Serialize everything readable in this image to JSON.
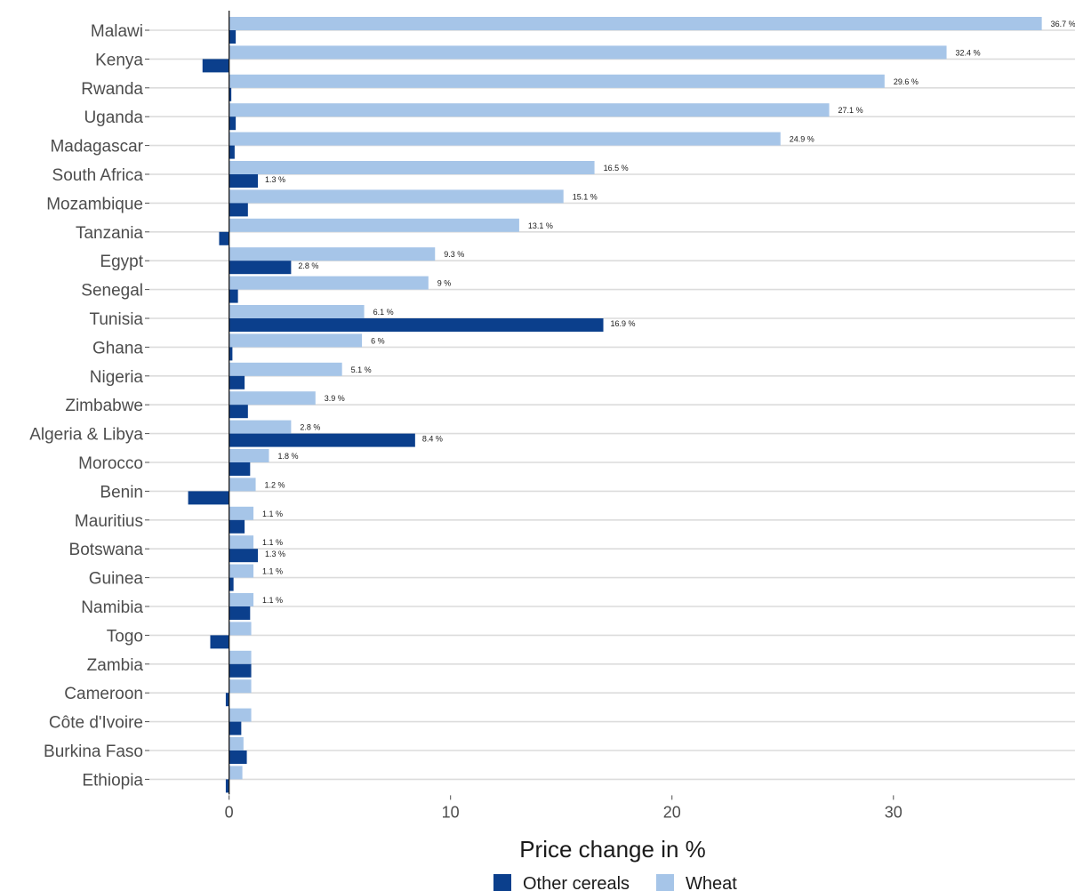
{
  "chart_data": {
    "type": "bar",
    "orientation": "horizontal",
    "xlabel": "Price change in %",
    "ylabel": "",
    "xlim": [
      -3.6,
      38.2
    ],
    "xticks": [
      0,
      10,
      20,
      30
    ],
    "grid": "horizontal only",
    "legend_position": "bottom",
    "categories": [
      "Malawi",
      "Kenya",
      "Rwanda",
      "Uganda",
      "Madagascar",
      "South Africa",
      "Mozambique",
      "Tanzania",
      "Egypt",
      "Senegal",
      "Tunisia",
      "Ghana",
      "Nigeria",
      "Zimbabwe",
      "Algeria & Libya",
      "Morocco",
      "Benin",
      "Mauritius",
      "Botswana",
      "Guinea",
      "Namibia",
      "Togo",
      "Zambia",
      "Cameroon",
      "Côte d'Ivoire",
      "Burkina Faso",
      "Ethiopia"
    ],
    "series": [
      {
        "name": "Wheat",
        "color": "#a6c5e8",
        "values": [
          36.7,
          32.4,
          29.6,
          27.1,
          24.9,
          16.5,
          15.1,
          13.1,
          9.3,
          9.0,
          6.1,
          6.0,
          5.1,
          3.9,
          2.8,
          1.8,
          1.2,
          1.1,
          1.1,
          1.1,
          1.1,
          1.0,
          1.0,
          1.0,
          1.0,
          0.65,
          0.6
        ],
        "labels": [
          "36.7 %",
          "32.4 %",
          "29.6 %",
          "27.1 %",
          "24.9 %",
          "16.5 %",
          "15.1 %",
          "13.1 %",
          "9.3 %",
          "9 %",
          "6.1 %",
          "6 %",
          "5.1 %",
          "3.9 %",
          "2.8 %",
          "1.8 %",
          "1.2 %",
          "1.1 %",
          "1.1 %",
          "1.1 %",
          "1.1 %",
          "",
          "",
          "",
          "",
          "",
          ""
        ]
      },
      {
        "name": "Other cereals",
        "color": "#0b3f8c",
        "values": [
          0.3,
          -1.2,
          0.1,
          0.3,
          0.25,
          1.3,
          0.85,
          -0.45,
          2.8,
          0.4,
          16.9,
          0.15,
          0.7,
          0.85,
          8.4,
          0.95,
          -1.85,
          0.7,
          1.3,
          0.2,
          0.95,
          -0.85,
          1.0,
          -0.15,
          0.55,
          0.8,
          -0.15
        ],
        "labels": [
          "",
          "",
          "",
          "",
          "",
          "1.3 %",
          "",
          "",
          "2.8 %",
          "",
          "16.9 %",
          "",
          "",
          "",
          "8.4 %",
          "",
          "",
          "",
          "1.3 %",
          "",
          "",
          "",
          "",
          "",
          "",
          "",
          ""
        ]
      }
    ],
    "legend": [
      "Other cereals",
      "Wheat"
    ]
  }
}
